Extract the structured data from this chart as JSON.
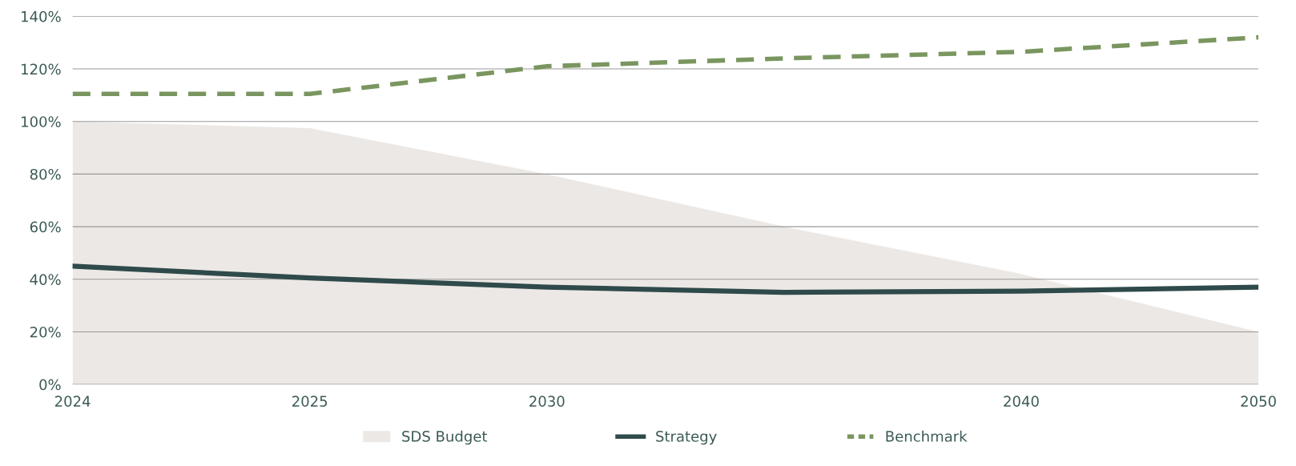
{
  "chart_data": {
    "type": "line",
    "categories": [
      "2024",
      "2025",
      "2030",
      null,
      "2040",
      "2050"
    ],
    "series": [
      {
        "name": "SDS Budget",
        "type": "area",
        "color": "#ece8e5",
        "values": [
          100,
          97.5,
          80,
          60,
          42,
          20
        ]
      },
      {
        "name": "Strategy",
        "color": "#2f4a4a",
        "line_style": "solid",
        "values": [
          45,
          40.5,
          37,
          35,
          35.5,
          37
        ]
      },
      {
        "name": "Benchmark",
        "color": "#7a9660",
        "line_style": "dashed",
        "values": [
          110.5,
          110.5,
          121,
          124,
          126.5,
          132
        ]
      }
    ],
    "ylim": [
      0,
      140
    ],
    "yticks": [
      {
        "value": 0,
        "label": "0%"
      },
      {
        "value": 20,
        "label": "20%"
      },
      {
        "value": 40,
        "label": "40%"
      },
      {
        "value": 60,
        "label": "60%"
      },
      {
        "value": 80,
        "label": "80%"
      },
      {
        "value": 100,
        "label": "100%"
      },
      {
        "value": 120,
        "label": "120%"
      },
      {
        "value": 140,
        "label": "140%"
      }
    ],
    "grid": "y",
    "legend": "bottom"
  }
}
